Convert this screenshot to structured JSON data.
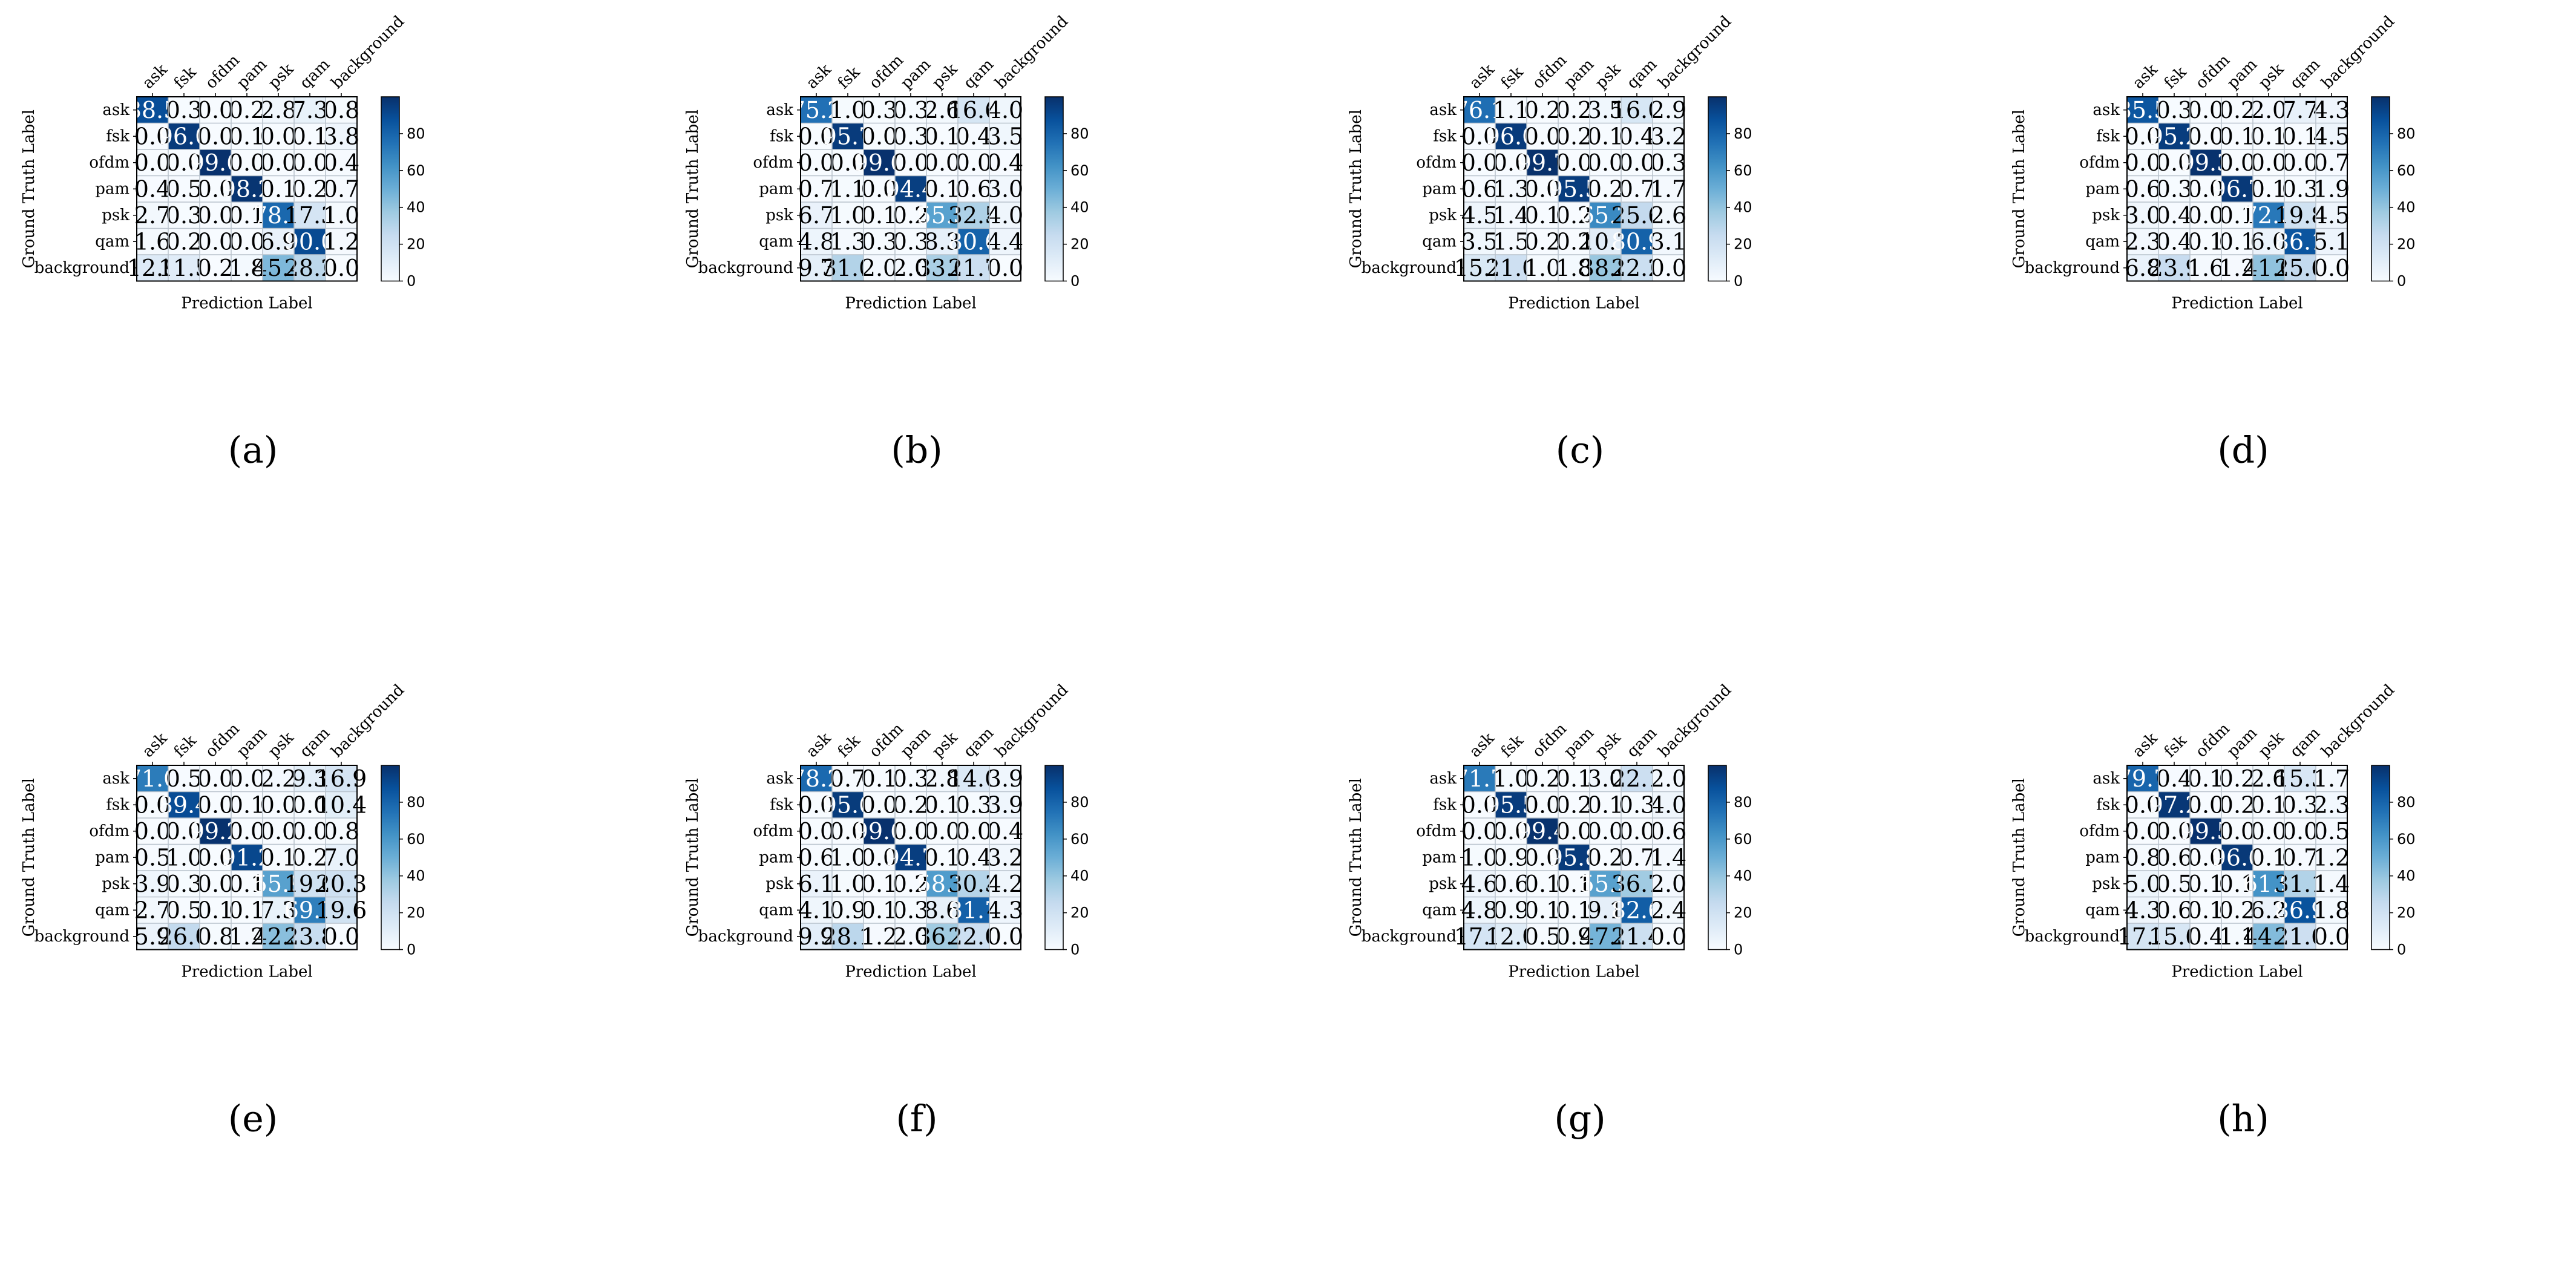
{
  "colors": {
    "cmap_low": "#f7fbff",
    "cmap_high": "#08306b",
    "text_dark": "#000000",
    "text_light": "#ffffff"
  },
  "shared_labels": [
    "ask",
    "fsk",
    "ofdm",
    "pam",
    "psk",
    "qam",
    "background"
  ],
  "chart_data": [
    {
      "type": "heatmap",
      "caption": "(a)",
      "xlabel": "Prediction Label",
      "ylabel": "Ground Truth Label",
      "colorbar_ticks": [
        0,
        20,
        40,
        60,
        80
      ],
      "vmin": 0,
      "vmax": 100,
      "rows": [
        [
          88.5,
          0.3,
          0.0,
          0.2,
          2.8,
          7.3,
          0.8
        ],
        [
          0.0,
          96.0,
          0.0,
          0.1,
          0.0,
          0.1,
          3.8
        ],
        [
          0.0,
          0.0,
          99.6,
          0.0,
          0.0,
          0.0,
          0.4
        ],
        [
          0.4,
          0.5,
          0.0,
          98.2,
          0.1,
          0.2,
          0.7
        ],
        [
          2.7,
          0.3,
          0.0,
          0.1,
          78.7,
          17.3,
          1.0
        ],
        [
          1.6,
          0.2,
          0.0,
          0.0,
          6.9,
          90.0,
          1.2
        ],
        [
          12.9,
          11.5,
          0.2,
          1.8,
          45.4,
          28.2,
          0.0
        ]
      ]
    },
    {
      "type": "heatmap",
      "caption": "(b)",
      "xlabel": "Prediction Label",
      "ylabel": "Ground Truth Label",
      "colorbar_ticks": [
        0,
        20,
        40,
        60,
        80
      ],
      "vmin": 0,
      "vmax": 100,
      "rows": [
        [
          75.2,
          1.0,
          0.3,
          0.3,
          2.6,
          16.6,
          4.0
        ],
        [
          0.0,
          95.7,
          0.0,
          0.3,
          0.1,
          0.4,
          3.5
        ],
        [
          0.0,
          0.0,
          99.6,
          0.0,
          0.0,
          0.0,
          0.4
        ],
        [
          0.7,
          1.1,
          0.0,
          94.4,
          0.1,
          0.6,
          3.0
        ],
        [
          6.7,
          1.0,
          0.1,
          0.2,
          55.5,
          32.5,
          4.0
        ],
        [
          4.8,
          1.3,
          0.3,
          0.3,
          8.3,
          80.6,
          4.4
        ],
        [
          9.7,
          31.0,
          2.0,
          2.0,
          33.6,
          21.7,
          0.0
        ]
      ]
    },
    {
      "type": "heatmap",
      "caption": "(c)",
      "xlabel": "Prediction Label",
      "ylabel": "Ground Truth Label",
      "colorbar_ticks": [
        0,
        20,
        40,
        60,
        80
      ],
      "vmin": 0,
      "vmax": 100,
      "rows": [
        [
          76.1,
          1.1,
          0.2,
          0.2,
          3.5,
          16.0,
          2.9
        ],
        [
          0.0,
          96.0,
          0.0,
          0.2,
          0.1,
          0.4,
          3.2
        ],
        [
          0.0,
          0.0,
          99.7,
          0.0,
          0.0,
          0.0,
          0.3
        ],
        [
          0.6,
          1.3,
          0.0,
          95.5,
          0.2,
          0.7,
          1.7
        ],
        [
          4.5,
          1.4,
          0.1,
          0.2,
          65.7,
          25.6,
          2.6
        ],
        [
          3.5,
          1.5,
          0.2,
          0.2,
          10.7,
          80.9,
          3.1
        ],
        [
          15.2,
          21.0,
          1.0,
          1.8,
          38.8,
          22.2,
          0.0
        ]
      ]
    },
    {
      "type": "heatmap",
      "caption": "(d)",
      "xlabel": "Prediction Label",
      "ylabel": "Ground Truth Label",
      "colorbar_ticks": [
        0,
        20,
        40,
        60,
        80
      ],
      "vmin": 0,
      "vmax": 100,
      "rows": [
        [
          85.5,
          0.3,
          0.0,
          0.2,
          2.0,
          7.7,
          4.3
        ],
        [
          0.0,
          95.2,
          0.0,
          0.1,
          0.1,
          0.1,
          4.5
        ],
        [
          0.0,
          0.0,
          99.3,
          0.0,
          0.0,
          0.0,
          0.7
        ],
        [
          0.6,
          0.3,
          0.0,
          96.7,
          0.1,
          0.3,
          1.9
        ],
        [
          3.0,
          0.4,
          0.0,
          0.1,
          72.2,
          19.8,
          4.5
        ],
        [
          2.3,
          0.4,
          0.1,
          0.1,
          6.0,
          86.1,
          5.1
        ],
        [
          6.8,
          23.9,
          1.6,
          1.2,
          41.0,
          25.6,
          0.0
        ]
      ]
    },
    {
      "type": "heatmap",
      "caption": "(e)",
      "xlabel": "Prediction Label",
      "ylabel": "Ground Truth Label",
      "colorbar_ticks": [
        0,
        20,
        40,
        60,
        80
      ],
      "vmin": 0,
      "vmax": 100,
      "rows": [
        [
          71.0,
          0.5,
          0.0,
          0.0,
          2.2,
          9.3,
          16.9
        ],
        [
          0.0,
          89.4,
          0.0,
          0.1,
          0.0,
          0.0,
          10.4
        ],
        [
          0.0,
          0.0,
          99.2,
          0.0,
          0.0,
          0.0,
          0.8
        ],
        [
          0.5,
          1.0,
          0.0,
          91.2,
          0.1,
          0.2,
          7.0
        ],
        [
          3.9,
          0.3,
          0.0,
          0.1,
          55.9,
          19.6,
          20.3
        ],
        [
          2.7,
          0.5,
          0.1,
          0.1,
          7.3,
          69.7,
          19.6
        ],
        [
          5.9,
          26.0,
          0.8,
          1.2,
          42.3,
          23.8,
          0.0
        ]
      ]
    },
    {
      "type": "heatmap",
      "caption": "(f)",
      "xlabel": "Prediction Label",
      "ylabel": "Ground Truth Label",
      "colorbar_ticks": [
        0,
        20,
        40,
        60,
        80
      ],
      "vmin": 0,
      "vmax": 100,
      "rows": [
        [
          78.2,
          0.7,
          0.1,
          0.3,
          2.8,
          14.0,
          3.9
        ],
        [
          0.0,
          95.6,
          0.0,
          0.2,
          0.1,
          0.3,
          3.9
        ],
        [
          0.0,
          0.0,
          99.6,
          0.0,
          0.0,
          0.0,
          0.4
        ],
        [
          0.6,
          1.0,
          0.0,
          94.7,
          0.1,
          0.4,
          3.2
        ],
        [
          6.1,
          1.0,
          0.1,
          0.2,
          58.1,
          30.3,
          4.2
        ],
        [
          4.1,
          0.9,
          0.1,
          0.3,
          8.6,
          81.7,
          4.3
        ],
        [
          9.9,
          28.1,
          1.2,
          2.0,
          36.7,
          22.0,
          0.0
        ]
      ]
    },
    {
      "type": "heatmap",
      "caption": "(g)",
      "xlabel": "Prediction Label",
      "ylabel": "Ground Truth Label",
      "colorbar_ticks": [
        0,
        20,
        40,
        60,
        80
      ],
      "vmin": 0,
      "vmax": 100,
      "rows": [
        [
          71.7,
          1.0,
          0.2,
          0.1,
          3.0,
          22.1,
          2.0
        ],
        [
          0.0,
          95.5,
          0.0,
          0.2,
          0.1,
          0.3,
          4.0
        ],
        [
          0.0,
          0.0,
          99.4,
          0.0,
          0.0,
          0.0,
          0.6
        ],
        [
          1.0,
          0.9,
          0.0,
          95.8,
          0.2,
          0.7,
          1.4
        ],
        [
          4.6,
          0.6,
          0.1,
          0.1,
          55.9,
          36.7,
          2.0
        ],
        [
          4.8,
          0.9,
          0.1,
          0.1,
          9.1,
          82.6,
          2.4
        ],
        [
          17.7,
          12.0,
          0.5,
          0.9,
          47.5,
          21.4,
          0.0
        ]
      ]
    },
    {
      "type": "heatmap",
      "caption": "(h)",
      "xlabel": "Prediction Label",
      "ylabel": "Ground Truth Label",
      "colorbar_ticks": [
        0,
        20,
        40,
        60,
        80
      ],
      "vmin": 0,
      "vmax": 100,
      "rows": [
        [
          79.7,
          0.4,
          0.1,
          0.2,
          2.6,
          15.3,
          1.7
        ],
        [
          0.0,
          97.2,
          0.0,
          0.2,
          0.1,
          0.3,
          2.3
        ],
        [
          0.0,
          0.0,
          99.5,
          0.0,
          0.0,
          0.0,
          0.5
        ],
        [
          0.8,
          0.6,
          0.0,
          96.6,
          0.1,
          0.7,
          1.2
        ],
        [
          5.0,
          0.5,
          0.1,
          0.1,
          61.9,
          31.1,
          1.4
        ],
        [
          4.3,
          0.6,
          0.1,
          0.2,
          6.2,
          86.9,
          1.8
        ],
        [
          17.2,
          15.6,
          0.4,
          1.1,
          44.1,
          21.6,
          0.0
        ]
      ]
    }
  ]
}
